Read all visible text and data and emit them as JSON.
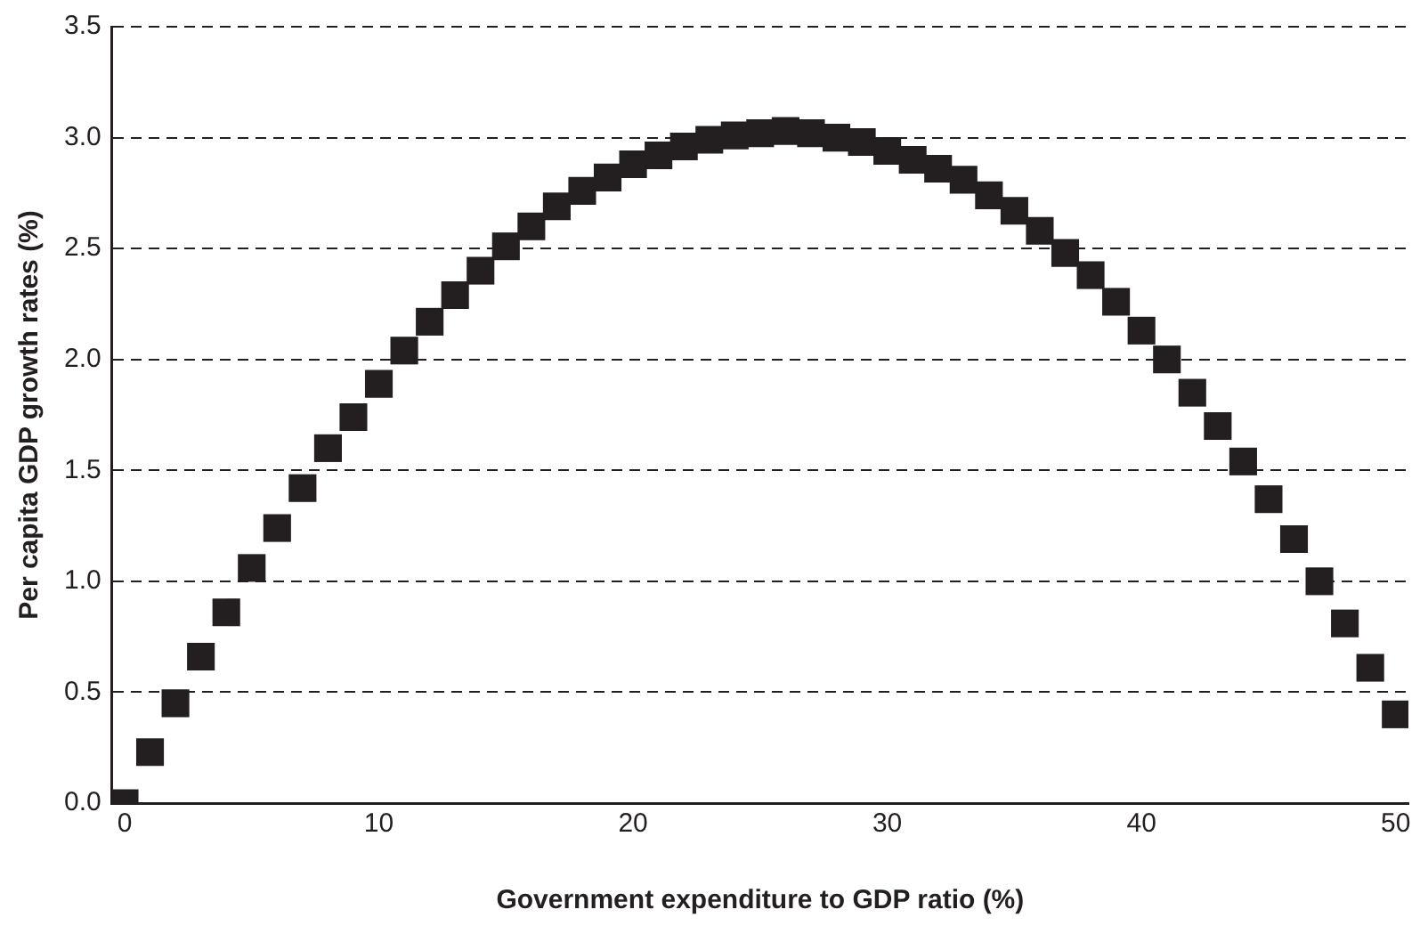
{
  "chart_data": {
    "type": "scatter",
    "xlabel": "Government expenditure to GDP ratio (%)",
    "ylabel": "Per capita GDP growth rates (%)",
    "x": [
      0,
      1,
      2,
      3,
      4,
      5,
      6,
      7,
      8,
      9,
      10,
      11,
      12,
      13,
      14,
      15,
      16,
      17,
      18,
      19,
      20,
      21,
      22,
      23,
      24,
      25,
      26,
      27,
      28,
      29,
      30,
      31,
      32,
      33,
      34,
      35,
      36,
      37,
      38,
      39,
      40,
      41,
      42,
      43,
      44,
      45,
      46,
      47,
      48,
      49,
      50
    ],
    "series": [
      {
        "color": "#231f20",
        "values": [
          0,
          0.23,
          0.45,
          0.66,
          0.86,
          1.06,
          1.24,
          1.42,
          1.6,
          1.74,
          1.89,
          2.04,
          2.17,
          2.29,
          2.4,
          2.51,
          2.6,
          2.69,
          2.76,
          2.82,
          2.88,
          2.92,
          2.96,
          2.99,
          3.01,
          3.02,
          3.03,
          3.02,
          3.0,
          2.98,
          2.94,
          2.9,
          2.86,
          2.81,
          2.74,
          2.67,
          2.58,
          2.48,
          2.38,
          2.26,
          2.13,
          2.0,
          1.85,
          1.7,
          1.54,
          1.37,
          1.19,
          1.0,
          0.81,
          0.61,
          0.4
        ]
      }
    ],
    "xlim": [
      -0.5,
      50.5
    ],
    "xticks": [
      0,
      10,
      20,
      30,
      40,
      50
    ],
    "ylim": [
      0,
      3.5
    ],
    "yticks": [
      {
        "value": 0,
        "label": "0.0"
      },
      0.5,
      {
        "value": 1,
        "label": "1.0"
      },
      1.5,
      {
        "value": 2,
        "label": "2.0"
      },
      2.5,
      {
        "value": 3,
        "label": "3.0"
      },
      3.5
    ],
    "grid": "y",
    "marker": "square"
  }
}
